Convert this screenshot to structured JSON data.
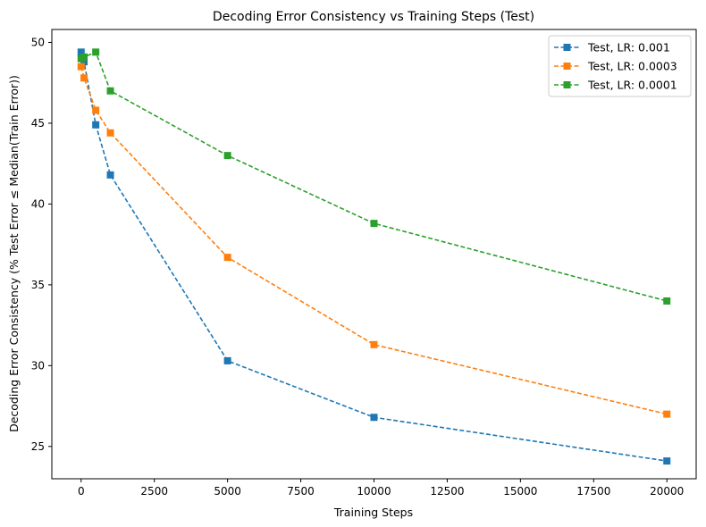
{
  "chart_data": {
    "type": "line",
    "title": "Decoding Error Consistency vs Training Steps (Test)",
    "xlabel": "Training Steps",
    "ylabel": "Decoding Error Consistency (% Test Error ≤ Median(Train Error))",
    "xlim": [
      -1000,
      21000
    ],
    "ylim": [
      23,
      50.8
    ],
    "xticks": [
      0,
      2500,
      5000,
      7500,
      10000,
      12500,
      15000,
      17500,
      20000
    ],
    "xtick_labels": [
      "0",
      "2500",
      "5000",
      "7500",
      "10000",
      "12500",
      "15000",
      "17500",
      "20000"
    ],
    "yticks": [
      25,
      30,
      35,
      40,
      45,
      50
    ],
    "ytick_labels": [
      "25",
      "30",
      "35",
      "40",
      "45",
      "50"
    ],
    "grid": false,
    "legend_position": "top-right",
    "series": [
      {
        "name": "Test, LR: 0.001",
        "color": "#1f77b4",
        "x": [
          0,
          100,
          500,
          1000,
          5000,
          10000,
          20000
        ],
        "y": [
          49.4,
          48.8,
          44.9,
          41.8,
          30.3,
          26.8,
          24.1
        ]
      },
      {
        "name": "Test, LR: 0.0003",
        "color": "#ff7f0e",
        "x": [
          0,
          100,
          500,
          1000,
          5000,
          10000,
          20000
        ],
        "y": [
          48.5,
          47.8,
          45.8,
          44.4,
          36.7,
          31.3,
          27.0
        ]
      },
      {
        "name": "Test, LR: 0.0001",
        "color": "#2ca02c",
        "x": [
          0,
          100,
          500,
          1000,
          5000,
          10000,
          20000
        ],
        "y": [
          49.0,
          49.1,
          49.4,
          47.0,
          43.0,
          38.8,
          34.0
        ]
      }
    ]
  }
}
